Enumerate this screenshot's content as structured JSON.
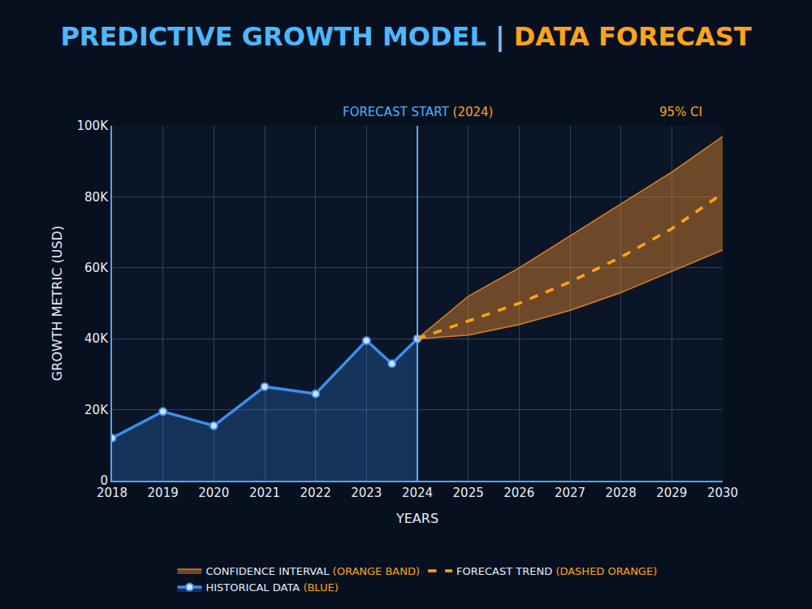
{
  "chart_data": {
    "type": "line",
    "title": "PREDICTIVE GROWTH MODEL | DATA FORECAST",
    "x_label": "YEARS",
    "y_label": "GROWTH METRIC (USD)",
    "xlim": [
      2018,
      2030
    ],
    "xticks": [
      2018,
      2019,
      2020,
      2021,
      2022,
      2023,
      2024,
      2025,
      2026,
      2027,
      2028,
      2029,
      2030
    ],
    "ylim": [
      0,
      100000
    ],
    "yticks": [
      0,
      {
        "value": 20000,
        "label": "20K"
      },
      {
        "value": 40000,
        "label": "40K"
      },
      {
        "value": 60000,
        "label": "60K"
      },
      {
        "value": 80000,
        "label": "80K"
      },
      {
        "value": 100000,
        "label": "100K"
      }
    ],
    "grid": true,
    "legend": "bottom",
    "series": [
      {
        "name": "HISTORICAL DATA (BLUE)",
        "color": "#3d8ef0",
        "line_style": "solid",
        "marker": "circle",
        "x": [
          2018,
          2019,
          2020,
          2021,
          2022,
          2023,
          2023.5,
          2024
        ],
        "values": [
          12000,
          19500,
          15500,
          26500,
          24500,
          39500,
          33000,
          40000
        ]
      },
      {
        "name": "FORECAST TREND (DASHED ORANGE)",
        "color": "#ffa31a",
        "line_style": "dashed",
        "x": [
          2024,
          2025,
          2026,
          2027,
          2028,
          2029,
          2030
        ],
        "values": [
          40000,
          45000,
          50000,
          56000,
          63000,
          71000,
          81000
        ]
      },
      {
        "name": "CONFIDENCE INTERVAL (ORANGE BAND)",
        "type": "band",
        "color": "#e8872a",
        "x": [
          2024,
          2025,
          2026,
          2027,
          2028,
          2029,
          2030
        ],
        "lower": [
          40000,
          41000,
          44000,
          48000,
          53000,
          59000,
          65000
        ],
        "upper": [
          40000,
          52000,
          60000,
          69000,
          78000,
          87000,
          97000
        ]
      }
    ],
    "annotations": [
      {
        "text": "FORECAST START (2024)",
        "x": 2024
      },
      {
        "text": "95% CI"
      }
    ]
  }
}
